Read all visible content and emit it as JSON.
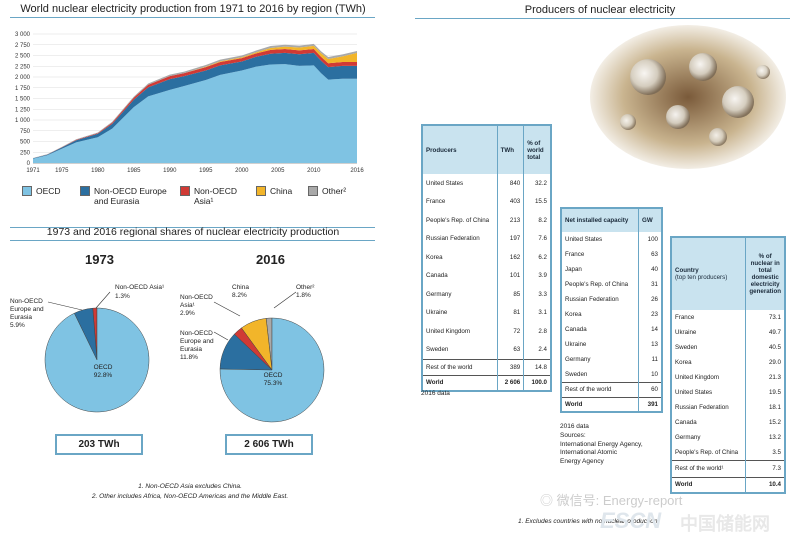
{
  "left_chart": {
    "title": "World nuclear electricity production from 1971 to 2016 by region (TWh)",
    "legend": [
      {
        "label": "OECD",
        "color": "#7fc3e3"
      },
      {
        "label": "Non-OECD Europe and Eurasia",
        "color": "#2b6fa0"
      },
      {
        "label": "Non-OECD Asia¹",
        "color": "#d03a35"
      },
      {
        "label": "China",
        "color": "#f2b52a"
      },
      {
        "label": "Other²",
        "color": "#a9a9a9"
      }
    ]
  },
  "chart_data": {
    "type": "area",
    "title": "World nuclear electricity production from 1971 to 2016 by region (TWh)",
    "x": [
      1971,
      1973,
      1975,
      1977,
      1980,
      1982,
      1985,
      1987,
      1990,
      1992,
      1995,
      1997,
      2000,
      2002,
      2004,
      2006,
      2008,
      2010,
      2011,
      2012,
      2014,
      2016
    ],
    "xticks": [
      "1971",
      "1975",
      "1980",
      "1985",
      "1990",
      "1995",
      "2000",
      "2005",
      "2010",
      "2016"
    ],
    "yticks": [
      "0",
      "250",
      "500",
      "750",
      "1 000",
      "1 250",
      "1 500",
      "1 750",
      "2 000",
      "2 250",
      "2 500",
      "2 750",
      "3 000"
    ],
    "ylim": [
      0,
      3000
    ],
    "series": [
      {
        "name": "OECD",
        "values": [
          100,
          180,
          330,
          480,
          600,
          800,
          1300,
          1550,
          1700,
          1790,
          1930,
          2050,
          2150,
          2240,
          2290,
          2300,
          2260,
          2270,
          2090,
          1940,
          1960,
          1960
        ]
      },
      {
        "name": "Non-OECD Europe and Eurasia",
        "values": [
          10,
          15,
          30,
          50,
          80,
          110,
          170,
          210,
          250,
          230,
          220,
          220,
          210,
          230,
          250,
          260,
          270,
          290,
          290,
          290,
          300,
          300
        ]
      },
      {
        "name": "Non-OECD Asia¹",
        "values": [
          0,
          2,
          5,
          10,
          15,
          30,
          50,
          60,
          70,
          70,
          80,
          80,
          80,
          80,
          90,
          90,
          90,
          90,
          90,
          90,
          90,
          90
        ]
      },
      {
        "name": "China",
        "values": [
          0,
          0,
          0,
          0,
          0,
          0,
          0,
          0,
          0,
          0,
          10,
          15,
          20,
          25,
          45,
          55,
          65,
          75,
          85,
          100,
          130,
          210
        ]
      },
      {
        "name": "Other²",
        "values": [
          5,
          8,
          10,
          12,
          15,
          20,
          25,
          30,
          35,
          35,
          40,
          40,
          40,
          40,
          45,
          45,
          45,
          45,
          45,
          45,
          45,
          45
        ]
      }
    ]
  },
  "pies": {
    "title": "1973 and 2016 regional shares of nuclear electricity production",
    "p1973": {
      "year": "1973",
      "total": "203 TWh",
      "labels": {
        "asia": "Non-OECD Asia¹",
        "asia_pct": "1.3%",
        "europe1": "Non-OECD",
        "europe2": "Europe and",
        "europe3": "Eurasia",
        "europe_pct": "5.9%",
        "oecd": "OECD",
        "oecd_pct": "92.8%"
      },
      "slices": [
        {
          "name": "OECD",
          "value": 92.8,
          "color": "#7fc3e3"
        },
        {
          "name": "Non-OECD Europe and Eurasia",
          "value": 5.9,
          "color": "#2b6fa0"
        },
        {
          "name": "Non-OECD Asia",
          "value": 1.3,
          "color": "#d03a35"
        }
      ]
    },
    "p2016": {
      "year": "2016",
      "total": "2 606 TWh",
      "labels": {
        "china": "China",
        "china_pct": "8.2%",
        "other": "Other²",
        "other_pct": "1.8%",
        "asia1": "Non-OECD",
        "asia2": "Asia¹",
        "asia_pct": "2.9%",
        "europe1": "Non-OECD",
        "europe2": "Europe and",
        "europe3": "Eurasia",
        "europe_pct": "11.8%",
        "oecd": "OECD",
        "oecd_pct": "75.3%"
      },
      "slices": [
        {
          "name": "OECD",
          "value": 75.3,
          "color": "#7fc3e3"
        },
        {
          "name": "Non-OECD Europe and Eurasia",
          "value": 11.8,
          "color": "#2b6fa0"
        },
        {
          "name": "Non-OECD Asia",
          "value": 2.9,
          "color": "#d03a35"
        },
        {
          "name": "China",
          "value": 8.2,
          "color": "#f2b52a"
        },
        {
          "name": "Other",
          "value": 1.8,
          "color": "#a9a9a9"
        }
      ]
    },
    "footnote1": "1. Non-OECD Asia excludes China.",
    "footnote2": "2. Other includes Africa, Non-OECD Americas and the Middle East."
  },
  "right": {
    "title": "Producers of nuclear electricity",
    "producers": {
      "headers": [
        "Producers",
        "TWh",
        "% of world total"
      ],
      "rows": [
        [
          "United States",
          "840",
          "32.2"
        ],
        [
          "France",
          "403",
          "15.5"
        ],
        [
          "People's Rep. of China",
          "213",
          "8.2"
        ],
        [
          "Russian Federation",
          "197",
          "7.6"
        ],
        [
          "Korea",
          "162",
          "6.2"
        ],
        [
          "Canada",
          "101",
          "3.9"
        ],
        [
          "Germany",
          "85",
          "3.3"
        ],
        [
          "Ukraine",
          "81",
          "3.1"
        ],
        [
          "United Kingdom",
          "72",
          "2.8"
        ],
        [
          "Sweden",
          "63",
          "2.4"
        ]
      ],
      "rest": [
        "Rest of the world",
        "389",
        "14.8"
      ],
      "world": [
        "World",
        "2 606",
        "100.0"
      ],
      "note": "2016 data"
    },
    "capacity": {
      "headers": [
        "Net installed capacity",
        "GW"
      ],
      "rows": [
        [
          "United States",
          "100"
        ],
        [
          "France",
          "63"
        ],
        [
          "Japan",
          "40"
        ],
        [
          "People's Rep. of China",
          "31"
        ],
        [
          "Russian Federation",
          "26"
        ],
        [
          "Korea",
          "23"
        ],
        [
          "Canada",
          "14"
        ],
        [
          "Ukraine",
          "13"
        ],
        [
          "Germany",
          "11"
        ],
        [
          "Sweden",
          "10"
        ]
      ],
      "rest": [
        "Rest of the world",
        "60"
      ],
      "world": [
        "World",
        "391"
      ],
      "note1": "2016 data",
      "note2": "Sources:",
      "note3": "International Energy Agency,",
      "note4": "International Atomic",
      "note5": "Energy Agency"
    },
    "share": {
      "header_country": "Country",
      "header_country_sub": "(top ten producers)",
      "header_pct": "% of nuclear in total domestic electricity generation",
      "rows": [
        [
          "France",
          "73.1"
        ],
        [
          "Ukraine",
          "49.7"
        ],
        [
          "Sweden",
          "40.5"
        ],
        [
          "Korea",
          "29.0"
        ],
        [
          "United Kingdom",
          "21.3"
        ],
        [
          "United States",
          "19.5"
        ],
        [
          "Russian Federation",
          "18.1"
        ],
        [
          "Canada",
          "15.2"
        ],
        [
          "Germany",
          "13.2"
        ],
        [
          "People's Rep. of China",
          "3.5"
        ]
      ],
      "rest": [
        "Rest of the world¹",
        "7.3"
      ],
      "world": [
        "World",
        "10.4"
      ],
      "footnote": "1. Excludes countries with no nuclear production."
    },
    "watermark": "微信号: Energy-report",
    "brand_left": "ESCN",
    "brand_right": "中国储能网"
  }
}
